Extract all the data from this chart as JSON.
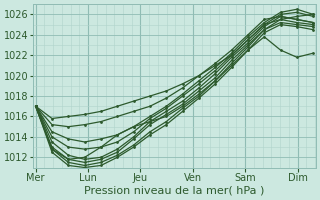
{
  "background_color": "#cce8e0",
  "plot_bg_color": "#cce8e0",
  "line_color": "#2d5a2d",
  "grid_color_minor": "#b0d4cc",
  "grid_color_major": "#90bcb4",
  "title": "Pression niveau de la mer( hPa )",
  "ylim": [
    1011.0,
    1027.0
  ],
  "yticks": [
    1012,
    1014,
    1016,
    1018,
    1020,
    1022,
    1024,
    1026
  ],
  "xtick_labels": [
    "Mer",
    "Lun",
    "Jeu",
    "Ven",
    "Sam",
    "Dim"
  ],
  "xtick_positions": [
    0,
    1,
    2,
    3,
    4,
    5
  ],
  "lines": [
    [
      1017.0,
      1015.8,
      1016.0,
      1016.2,
      1016.5,
      1017.0,
      1017.5,
      1018.0,
      1018.5,
      1019.2,
      1020.0,
      1021.0,
      1022.0,
      1023.5,
      1025.0,
      1025.5,
      1025.8,
      1026.0
    ],
    [
      1017.0,
      1015.2,
      1015.0,
      1015.2,
      1015.5,
      1016.0,
      1016.5,
      1017.0,
      1017.8,
      1018.8,
      1020.0,
      1021.2,
      1022.5,
      1024.0,
      1025.5,
      1025.8,
      1025.5,
      1025.2
    ],
    [
      1017.0,
      1014.5,
      1013.8,
      1013.5,
      1013.8,
      1014.2,
      1015.0,
      1016.0,
      1017.0,
      1018.2,
      1019.5,
      1020.8,
      1022.2,
      1023.8,
      1025.2,
      1026.2,
      1026.5,
      1026.0
    ],
    [
      1017.0,
      1014.0,
      1013.0,
      1012.8,
      1013.0,
      1013.5,
      1014.5,
      1015.8,
      1016.8,
      1018.0,
      1019.2,
      1020.5,
      1022.0,
      1023.5,
      1025.0,
      1026.0,
      1026.2,
      1025.8
    ],
    [
      1017.0,
      1013.5,
      1012.2,
      1011.8,
      1012.0,
      1012.8,
      1014.0,
      1015.5,
      1016.5,
      1017.5,
      1018.8,
      1020.2,
      1021.8,
      1023.2,
      1024.8,
      1025.8,
      1025.5,
      1025.2
    ],
    [
      1017.0,
      1013.0,
      1011.8,
      1011.5,
      1011.8,
      1012.5,
      1013.8,
      1015.2,
      1016.2,
      1017.2,
      1018.5,
      1019.8,
      1021.5,
      1023.0,
      1024.5,
      1025.5,
      1025.2,
      1025.0
    ],
    [
      1017.0,
      1012.8,
      1011.5,
      1011.2,
      1011.5,
      1012.2,
      1013.2,
      1014.5,
      1015.5,
      1016.8,
      1018.0,
      1019.5,
      1021.2,
      1022.8,
      1024.5,
      1025.2,
      1025.0,
      1024.8
    ],
    [
      1017.0,
      1012.5,
      1011.2,
      1011.0,
      1011.2,
      1012.0,
      1013.0,
      1014.2,
      1015.2,
      1016.5,
      1017.8,
      1019.2,
      1020.8,
      1022.5,
      1024.2,
      1025.0,
      1024.8,
      1024.5
    ],
    [
      1017.0,
      1012.8,
      1011.8,
      1012.0,
      1013.0,
      1014.2,
      1015.0,
      1015.5,
      1016.0,
      1017.0,
      1018.2,
      1019.5,
      1021.0,
      1022.5,
      1023.8,
      1022.5,
      1021.8,
      1022.2
    ]
  ],
  "marker": ".",
  "linewidth": 0.9,
  "markersize": 2.0,
  "fontsize_ticks": 7,
  "fontsize_xlabel": 8
}
